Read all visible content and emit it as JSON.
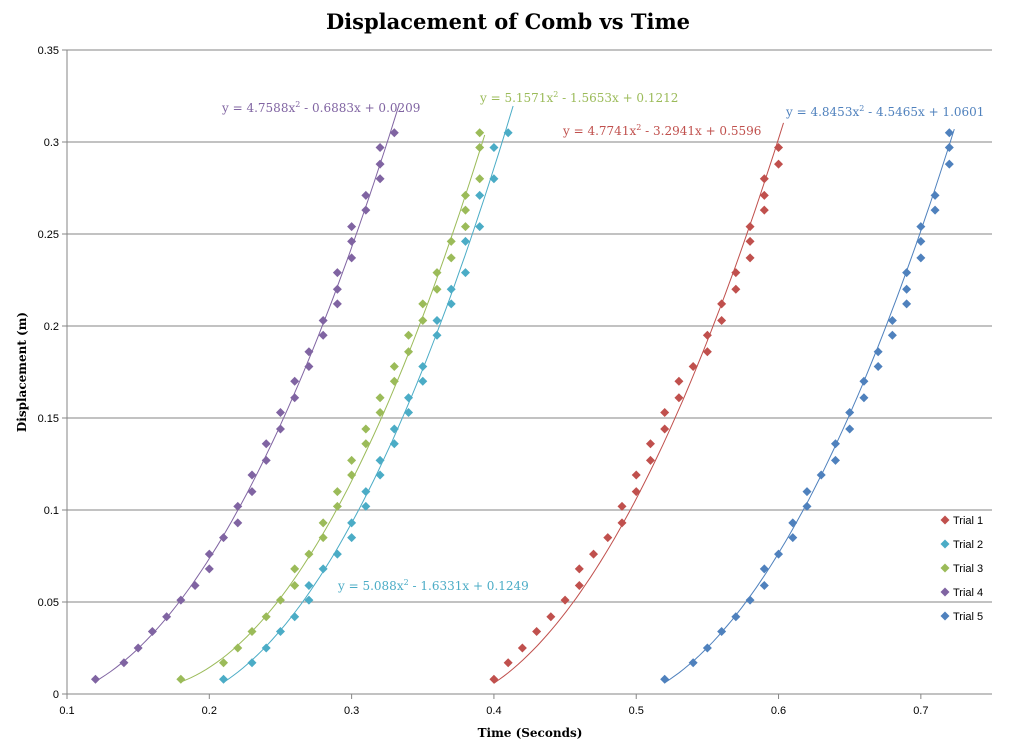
{
  "chart_data": {
    "type": "scatter",
    "title": "Displacement of Comb vs Time",
    "xlabel": "Time (Seconds)",
    "ylabel": "Displacement (m)",
    "xlim": [
      0.1,
      0.75
    ],
    "ylim": [
      0,
      0.35
    ],
    "x_ticks": [
      "0.1",
      "0.2",
      "0.3",
      "0.4",
      "0.5",
      "0.6",
      "0.7"
    ],
    "y_ticks": [
      "0",
      "0.05",
      "0.1",
      "0.15",
      "0.2",
      "0.25",
      "0.3",
      "0.35"
    ],
    "grid": "horizontal",
    "legend_position": "right",
    "series": [
      {
        "name": "Trial 1",
        "color": "#C0504D",
        "equation": {
          "a": "4.7741",
          "b": "- 3.2941x",
          "c": "+ 0.5596"
        },
        "fit": [
          4.7741,
          -3.2941,
          0.5596
        ],
        "x": [
          0.4,
          0.41,
          0.42,
          0.43,
          0.44,
          0.45,
          0.46,
          0.46,
          0.47,
          0.48,
          0.49,
          0.49,
          0.5,
          0.5,
          0.51,
          0.51,
          0.52,
          0.52,
          0.53,
          0.53,
          0.54,
          0.55,
          0.55,
          0.56,
          0.56,
          0.57,
          0.57,
          0.58,
          0.58,
          0.58,
          0.59,
          0.59,
          0.59,
          0.6,
          0.6
        ],
        "y": [
          0.008,
          0.017,
          0.025,
          0.034,
          0.042,
          0.051,
          0.059,
          0.068,
          0.076,
          0.085,
          0.093,
          0.102,
          0.11,
          0.119,
          0.127,
          0.136,
          0.144,
          0.153,
          0.161,
          0.17,
          0.178,
          0.186,
          0.195,
          0.203,
          0.212,
          0.22,
          0.229,
          0.237,
          0.246,
          0.254,
          0.263,
          0.271,
          0.28,
          0.288,
          0.297
        ]
      },
      {
        "name": "Trial 2",
        "color": "#4BACC6",
        "equation": {
          "a": "5.088",
          "b": "- 1.6331x",
          "c": "+ 0.1249"
        },
        "fit": [
          5.088,
          -1.6331,
          0.1249
        ],
        "x": [
          0.21,
          0.23,
          0.24,
          0.25,
          0.26,
          0.27,
          0.27,
          0.28,
          0.29,
          0.3,
          0.3,
          0.31,
          0.31,
          0.32,
          0.32,
          0.33,
          0.33,
          0.34,
          0.34,
          0.35,
          0.35,
          0.36,
          0.36,
          0.37,
          0.37,
          0.38,
          0.38,
          0.39,
          0.39,
          0.4,
          0.4,
          0.41
        ],
        "y": [
          0.008,
          0.017,
          0.025,
          0.034,
          0.042,
          0.051,
          0.059,
          0.068,
          0.076,
          0.085,
          0.093,
          0.102,
          0.11,
          0.119,
          0.127,
          0.136,
          0.144,
          0.153,
          0.161,
          0.17,
          0.178,
          0.195,
          0.203,
          0.212,
          0.22,
          0.229,
          0.246,
          0.254,
          0.271,
          0.28,
          0.297,
          0.305
        ]
      },
      {
        "name": "Trial 3",
        "color": "#9BBB59",
        "equation": {
          "a": "5.1571",
          "b": "- 1.5653x",
          "c": "+ 0.1212"
        },
        "fit": [
          5.1571,
          -1.5653,
          0.1212
        ],
        "x": [
          0.18,
          0.21,
          0.22,
          0.23,
          0.24,
          0.25,
          0.26,
          0.26,
          0.27,
          0.28,
          0.28,
          0.29,
          0.29,
          0.3,
          0.3,
          0.31,
          0.31,
          0.32,
          0.32,
          0.33,
          0.33,
          0.34,
          0.34,
          0.35,
          0.35,
          0.36,
          0.36,
          0.37,
          0.37,
          0.38,
          0.38,
          0.38,
          0.39,
          0.39,
          0.39
        ],
        "y": [
          0.008,
          0.017,
          0.025,
          0.034,
          0.042,
          0.051,
          0.059,
          0.068,
          0.076,
          0.085,
          0.093,
          0.102,
          0.11,
          0.119,
          0.127,
          0.136,
          0.144,
          0.153,
          0.161,
          0.17,
          0.178,
          0.186,
          0.195,
          0.203,
          0.212,
          0.22,
          0.229,
          0.237,
          0.246,
          0.254,
          0.263,
          0.271,
          0.28,
          0.297,
          0.305
        ]
      },
      {
        "name": "Trial 4",
        "color": "#8064A2",
        "equation": {
          "a": "4.7588",
          "b": "- 0.6883x",
          "c": "+ 0.0209"
        },
        "fit": [
          4.7588,
          -0.6883,
          0.0209
        ],
        "x": [
          0.12,
          0.14,
          0.15,
          0.16,
          0.17,
          0.18,
          0.19,
          0.2,
          0.2,
          0.21,
          0.22,
          0.22,
          0.23,
          0.23,
          0.24,
          0.24,
          0.25,
          0.25,
          0.26,
          0.26,
          0.27,
          0.27,
          0.28,
          0.28,
          0.29,
          0.29,
          0.29,
          0.3,
          0.3,
          0.3,
          0.31,
          0.31,
          0.32,
          0.32,
          0.32,
          0.33
        ],
        "y": [
          0.008,
          0.017,
          0.025,
          0.034,
          0.042,
          0.051,
          0.059,
          0.068,
          0.076,
          0.085,
          0.093,
          0.102,
          0.11,
          0.119,
          0.127,
          0.136,
          0.144,
          0.153,
          0.161,
          0.17,
          0.178,
          0.186,
          0.195,
          0.203,
          0.212,
          0.22,
          0.229,
          0.237,
          0.246,
          0.254,
          0.263,
          0.271,
          0.28,
          0.288,
          0.297,
          0.305
        ]
      },
      {
        "name": "Trial 5",
        "color": "#4F81BD",
        "equation": {
          "a": "4.8453",
          "b": "- 4.5465x",
          "c": "+ 1.0601"
        },
        "fit": [
          4.8453,
          -4.5465,
          1.0601
        ],
        "x": [
          0.52,
          0.54,
          0.55,
          0.56,
          0.57,
          0.58,
          0.59,
          0.59,
          0.6,
          0.61,
          0.61,
          0.62,
          0.62,
          0.63,
          0.64,
          0.64,
          0.65,
          0.65,
          0.66,
          0.66,
          0.67,
          0.67,
          0.68,
          0.68,
          0.69,
          0.69,
          0.69,
          0.7,
          0.7,
          0.7,
          0.71,
          0.71,
          0.72,
          0.72,
          0.72
        ],
        "y": [
          0.008,
          0.017,
          0.025,
          0.034,
          0.042,
          0.051,
          0.059,
          0.068,
          0.076,
          0.085,
          0.093,
          0.102,
          0.11,
          0.119,
          0.127,
          0.136,
          0.144,
          0.153,
          0.161,
          0.17,
          0.178,
          0.186,
          0.195,
          0.203,
          0.212,
          0.22,
          0.229,
          0.237,
          0.246,
          0.254,
          0.263,
          0.271,
          0.288,
          0.297,
          0.305
        ]
      }
    ]
  }
}
